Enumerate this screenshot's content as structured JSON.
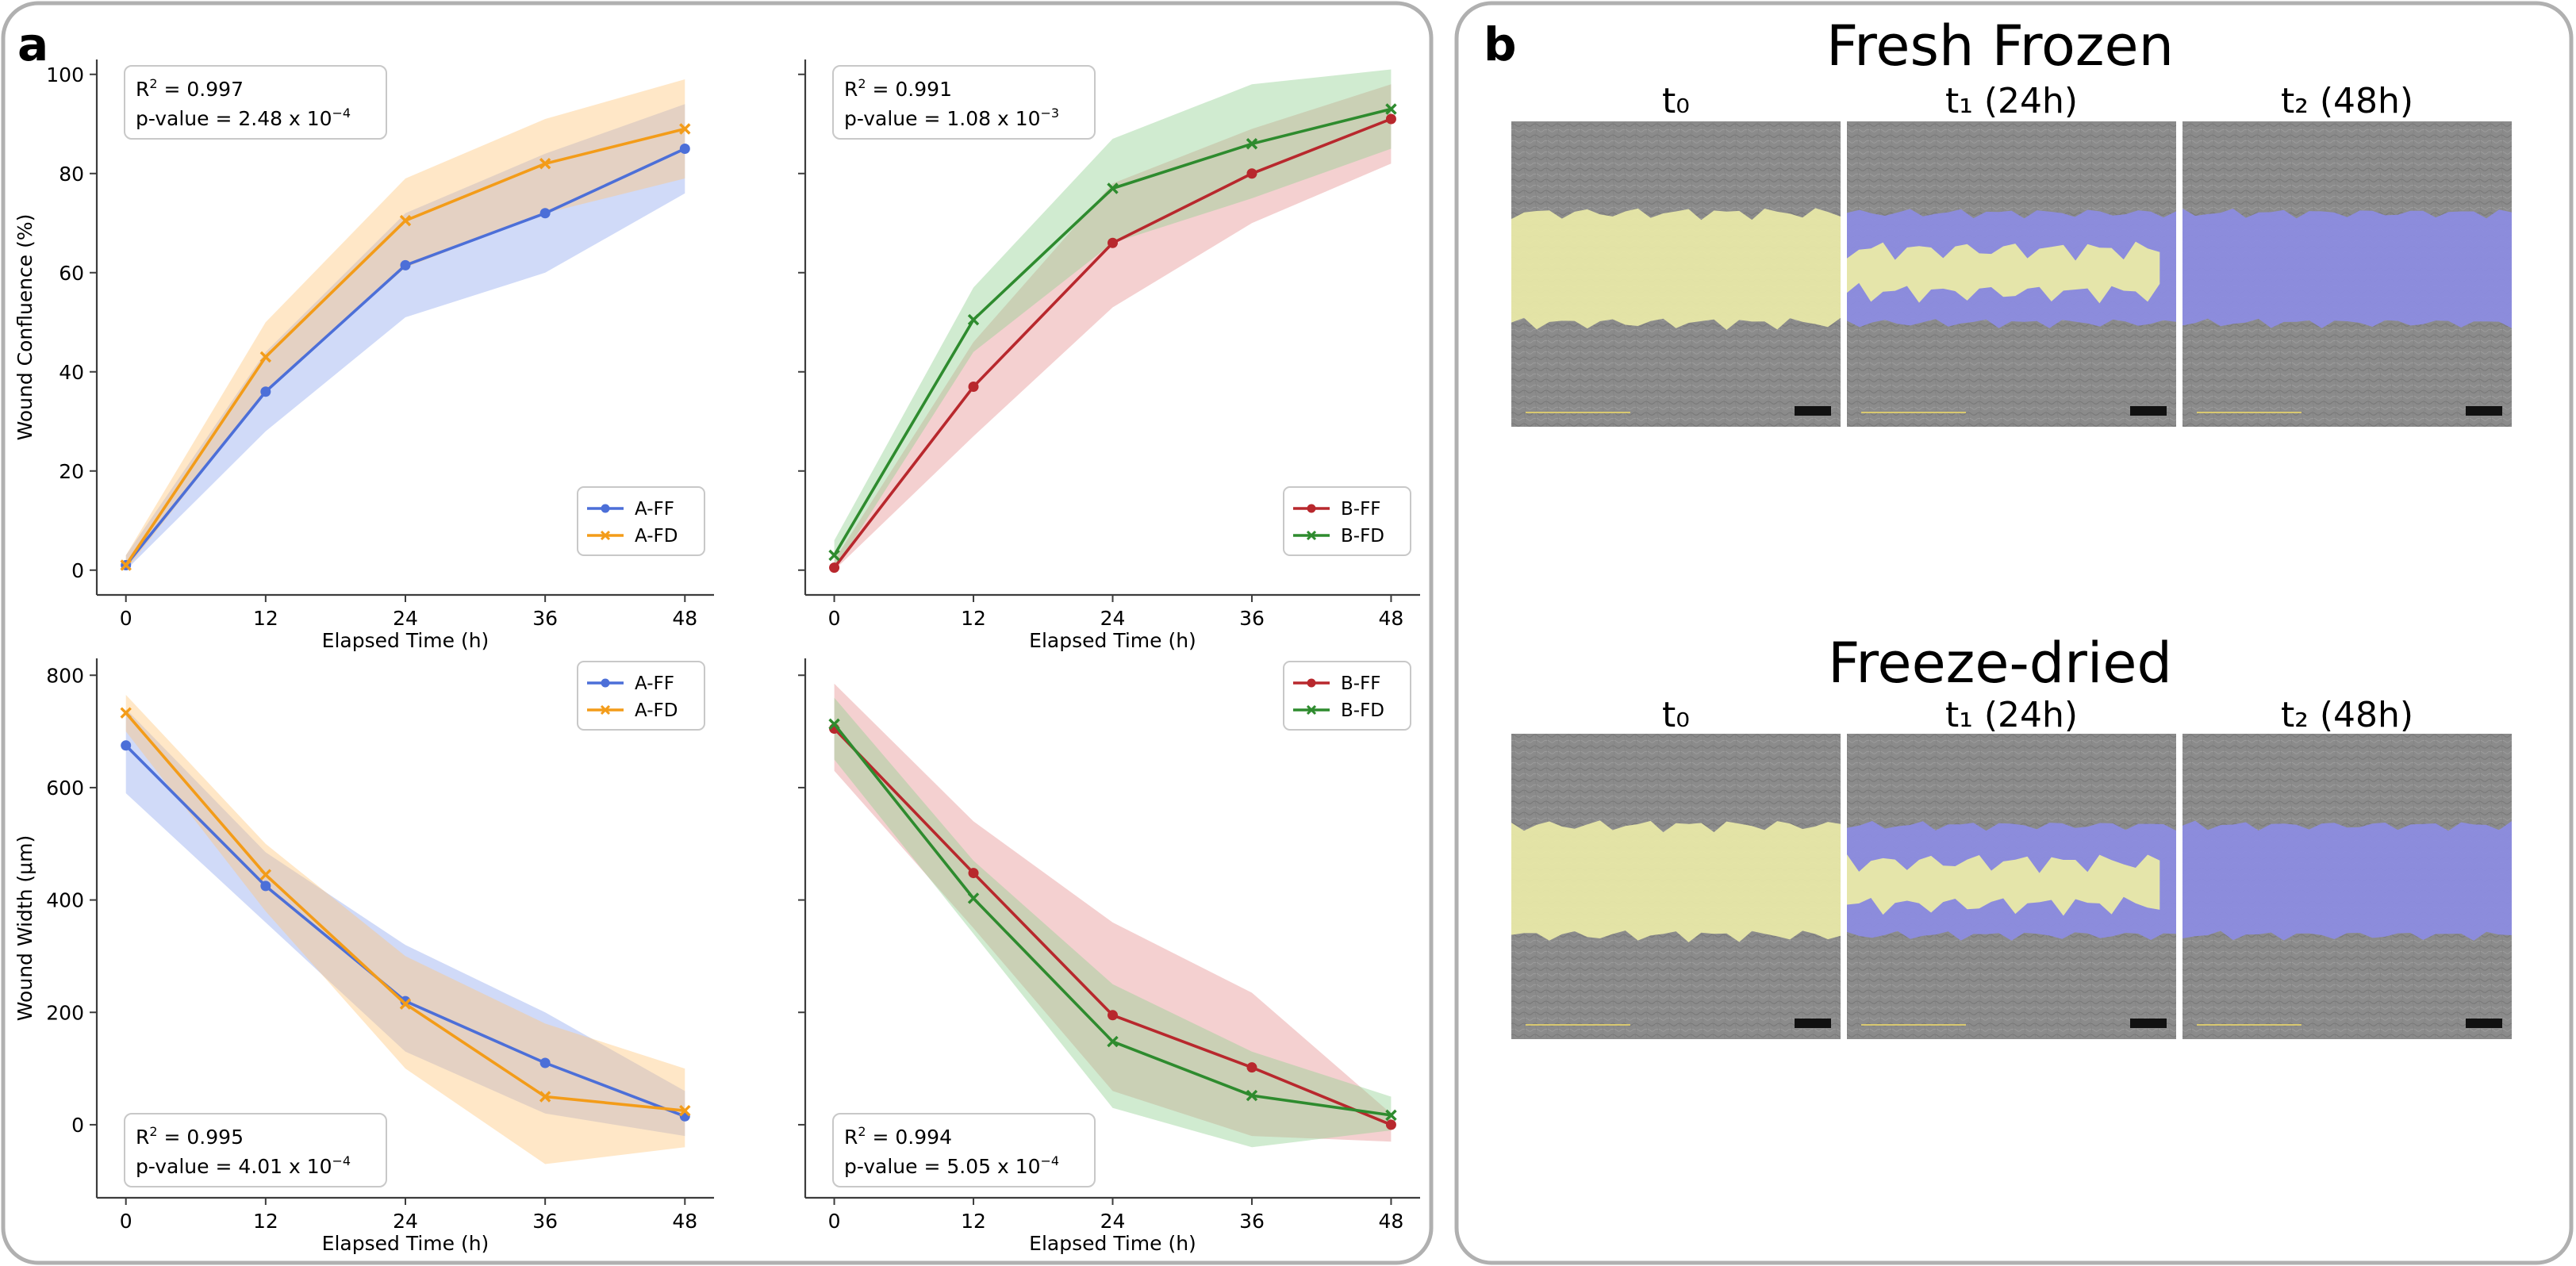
{
  "panel_a_label": "a",
  "panel_b_label": "b",
  "colors": {
    "A-FF": "#4c6fd8",
    "A-FD": "#f39c19",
    "B-FF": "#b8282d",
    "B-FD": "#2e8b2e",
    "A-FF-band": "#8fa6ee",
    "A-FD-band": "#ffc57a",
    "B-FF-band": "#e59090",
    "B-FD-band": "#8fcf8f",
    "yellow-mask": "#e8e8a8",
    "blue-mask": "#8c8ce0",
    "cell-gray": "#8a8a8a"
  },
  "chart_data": [
    {
      "id": "confluence-A",
      "type": "line",
      "xlabel": "Elapsed Time (h)",
      "ylabel": "Wound Confluence (%)",
      "x": [
        0,
        12,
        24,
        36,
        48
      ],
      "xticks": [
        "0",
        "12",
        "24",
        "36",
        "48"
      ],
      "ylim": [
        -5,
        103
      ],
      "yticks": [
        0,
        20,
        40,
        60,
        80,
        100
      ],
      "yticklabels": [
        "0",
        "20",
        "40",
        "60",
        "80",
        "100"
      ],
      "legend_position": "lower-right",
      "annotation": {
        "position": "top-left",
        "r2": "0.997",
        "p_mant": "2.48",
        "p_exp": "−4"
      },
      "series": [
        {
          "name": "A-FF",
          "marker": "circle",
          "values": [
            1,
            36,
            61.5,
            72,
            85
          ],
          "lower": [
            0,
            28,
            51,
            60,
            76
          ],
          "upper": [
            3,
            44,
            72,
            84,
            94
          ]
        },
        {
          "name": "A-FD",
          "marker": "x",
          "values": [
            1,
            43,
            70.5,
            82,
            89
          ],
          "lower": [
            0,
            36,
            61,
            72,
            79
          ],
          "upper": [
            3,
            50,
            79,
            91,
            99
          ]
        }
      ]
    },
    {
      "id": "confluence-B",
      "type": "line",
      "xlabel": "Elapsed Time (h)",
      "ylabel": "",
      "x": [
        0,
        12,
        24,
        36,
        48
      ],
      "xticks": [
        "0",
        "12",
        "24",
        "36",
        "48"
      ],
      "ylim": [
        -5,
        103
      ],
      "yticks": [
        0,
        20,
        40,
        60,
        80,
        100
      ],
      "yticklabels": [
        "",
        "",
        "",
        "",
        "",
        ""
      ],
      "legend_position": "lower-right",
      "annotation": {
        "position": "top-left",
        "r2": "0.991",
        "p_mant": "1.08",
        "p_exp": "−3"
      },
      "series": [
        {
          "name": "B-FF",
          "marker": "circle",
          "values": [
            0.5,
            37,
            66,
            80,
            91
          ],
          "lower": [
            0,
            27,
            53,
            70,
            82
          ],
          "upper": [
            2,
            46,
            78,
            89,
            98
          ]
        },
        {
          "name": "B-FD",
          "marker": "x",
          "values": [
            3,
            50.5,
            77,
            86,
            93
          ],
          "lower": [
            0,
            44,
            66,
            75,
            85
          ],
          "upper": [
            6,
            57,
            87,
            98,
            101
          ]
        }
      ]
    },
    {
      "id": "width-A",
      "type": "line",
      "xlabel": "Elapsed Time (h)",
      "ylabel": "Wound Width (μm)",
      "x": [
        0,
        12,
        24,
        36,
        48
      ],
      "xticks": [
        "0",
        "12",
        "24",
        "36",
        "48"
      ],
      "ylim": [
        -130,
        830
      ],
      "yticks": [
        0,
        200,
        400,
        600,
        800
      ],
      "yticklabels": [
        "0",
        "200",
        "400",
        "600",
        "800"
      ],
      "legend_position": "top-right",
      "annotation": {
        "position": "bottom-left",
        "r2": "0.995",
        "p_mant": "4.01",
        "p_exp": "−4"
      },
      "series": [
        {
          "name": "A-FF",
          "marker": "circle",
          "values": [
            675,
            425,
            220,
            110,
            15
          ],
          "lower": [
            590,
            360,
            130,
            20,
            -20
          ],
          "upper": [
            740,
            485,
            320,
            200,
            60
          ]
        },
        {
          "name": "A-FD",
          "marker": "x",
          "values": [
            733,
            445,
            215,
            50,
            25
          ],
          "lower": [
            700,
            380,
            100,
            -70,
            -40
          ],
          "upper": [
            765,
            500,
            300,
            180,
            100
          ]
        }
      ]
    },
    {
      "id": "width-B",
      "type": "line",
      "xlabel": "Elapsed Time (h)",
      "ylabel": "",
      "x": [
        0,
        12,
        24,
        36,
        48
      ],
      "xticks": [
        "0",
        "12",
        "24",
        "36",
        "48"
      ],
      "ylim": [
        -130,
        830
      ],
      "yticks": [
        0,
        200,
        400,
        600,
        800
      ],
      "yticklabels": [
        "",
        "",
        "",
        "",
        ""
      ],
      "legend_position": "top-right",
      "annotation": {
        "position": "bottom-left",
        "r2": "0.994",
        "p_mant": "5.05",
        "p_exp": "−4"
      },
      "series": [
        {
          "name": "B-FF",
          "marker": "circle",
          "values": [
            705,
            448,
            195,
            102,
            0
          ],
          "lower": [
            630,
            350,
            60,
            -20,
            -30
          ],
          "upper": [
            785,
            540,
            360,
            235,
            20
          ]
        },
        {
          "name": "B-FD",
          "marker": "x",
          "values": [
            713,
            403,
            148,
            52,
            17
          ],
          "lower": [
            650,
            340,
            30,
            -40,
            -10
          ],
          "upper": [
            760,
            470,
            250,
            130,
            50
          ]
        }
      ]
    }
  ],
  "panel_b": {
    "rows": [
      {
        "title": "Fresh Frozen",
        "columns": [
          {
            "label": "t₀",
            "mask": "t0"
          },
          {
            "label": "t₁ (24h)",
            "mask": "t1"
          },
          {
            "label": "t₂ (48h)",
            "mask": "t2"
          }
        ]
      },
      {
        "title": "Freeze-dried",
        "columns": [
          {
            "label": "t₀",
            "mask": "t0"
          },
          {
            "label": "t₁ (24h)",
            "mask": "t1"
          },
          {
            "label": "t₂ (48h)",
            "mask": "t2"
          }
        ]
      }
    ]
  }
}
